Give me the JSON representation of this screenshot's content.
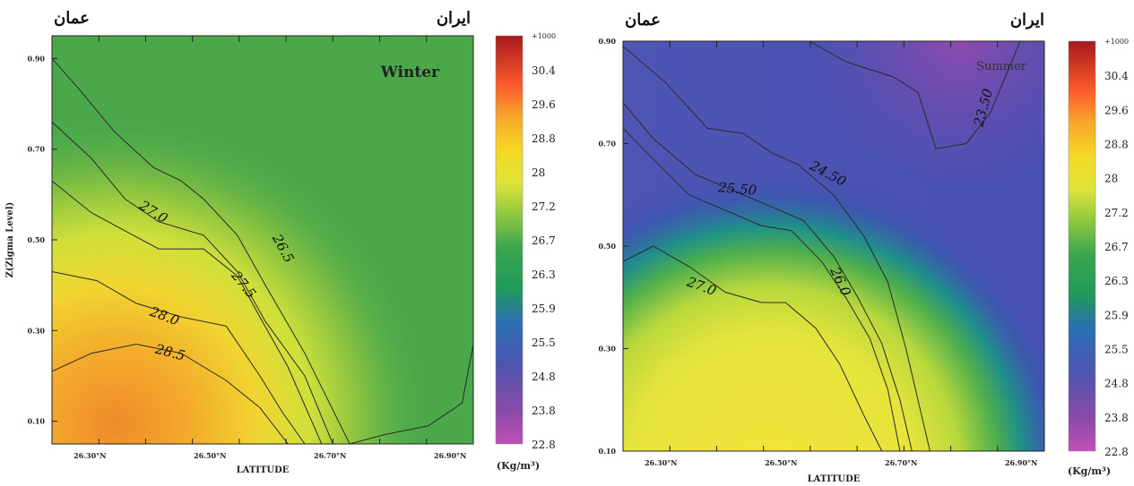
{
  "chart_data": [
    {
      "type": "heatmap",
      "title": "Winter",
      "region_left": "عمان",
      "region_right": "ایران",
      "xlabel": "LATITUDE",
      "ylabel": "Z(Zigma Level)",
      "xticks": [
        "26.30°N",
        "26.50°N",
        "26.70°N",
        "26.90°N"
      ],
      "yticks": [
        "0.10",
        "0.30",
        "0.50",
        "0.70",
        "0.90"
      ],
      "xlim": [
        26.25,
        27.0
      ],
      "ylim": [
        0.05,
        0.95
      ],
      "contours": [
        {
          "label": "28.5",
          "points": [
            [
              26.25,
              0.21
            ],
            [
              26.32,
              0.25
            ],
            [
              26.4,
              0.27
            ],
            [
              26.48,
              0.25
            ],
            [
              26.56,
              0.19
            ],
            [
              26.62,
              0.13
            ],
            [
              26.67,
              0.05
            ]
          ]
        },
        {
          "label": "28.0",
          "points": [
            [
              26.25,
              0.43
            ],
            [
              26.33,
              0.41
            ],
            [
              26.4,
              0.36
            ],
            [
              26.48,
              0.33
            ],
            [
              26.56,
              0.31
            ],
            [
              26.62,
              0.2
            ],
            [
              26.66,
              0.12
            ],
            [
              26.7,
              0.05
            ]
          ]
        },
        {
          "label": "27.5",
          "points": [
            [
              26.25,
              0.63
            ],
            [
              26.32,
              0.56
            ],
            [
              26.38,
              0.52
            ],
            [
              26.44,
              0.48
            ],
            [
              26.52,
              0.48
            ],
            [
              26.58,
              0.42
            ],
            [
              26.62,
              0.33
            ],
            [
              26.67,
              0.22
            ],
            [
              26.73,
              0.05
            ]
          ]
        },
        {
          "label": "27.0",
          "points": [
            [
              26.25,
              0.76
            ],
            [
              26.32,
              0.68
            ],
            [
              26.38,
              0.59
            ],
            [
              26.44,
              0.54
            ],
            [
              26.52,
              0.51
            ],
            [
              26.58,
              0.43
            ],
            [
              26.63,
              0.32
            ],
            [
              26.7,
              0.2
            ],
            [
              26.75,
              0.05
            ]
          ]
        },
        {
          "label": "26.5",
          "points": [
            [
              26.25,
              0.9
            ],
            [
              26.3,
              0.83
            ],
            [
              26.36,
              0.74
            ],
            [
              26.43,
              0.66
            ],
            [
              26.48,
              0.63
            ],
            [
              26.52,
              0.59
            ],
            [
              26.58,
              0.51
            ],
            [
              26.63,
              0.4
            ],
            [
              26.7,
              0.25
            ],
            [
              26.78,
              0.05
            ],
            [
              26.84,
              0.07
            ],
            [
              26.92,
              0.09
            ],
            [
              26.98,
              0.14
            ],
            [
              27.0,
              0.27
            ]
          ]
        }
      ],
      "labels": [
        {
          "text": "27.0",
          "x": 26.43,
          "y": 0.56,
          "angle": 32
        },
        {
          "text": "28.0",
          "x": 26.45,
          "y": 0.33,
          "angle": 20
        },
        {
          "text": "27.5",
          "x": 26.59,
          "y": 0.4,
          "angle": 52
        },
        {
          "text": "26.5",
          "x": 26.66,
          "y": 0.48,
          "angle": 62
        },
        {
          "text": "28.5",
          "x": 26.46,
          "y": 0.25,
          "angle": 15
        }
      ]
    },
    {
      "type": "heatmap",
      "title": "Summer",
      "region_left": "عمان",
      "region_right": "ایران",
      "xlabel": "LATITUDE",
      "ylabel": "",
      "xticks": [
        "26.30°N",
        "26.50°N",
        "26.70°N",
        "26.90°N"
      ],
      "yticks": [
        "0.10",
        "0.30",
        "0.50",
        "0.70",
        "0.90"
      ],
      "xlim": [
        26.25,
        26.95
      ],
      "ylim": [
        0.1,
        0.9
      ],
      "contours": [
        {
          "label": "27.0",
          "points": [
            [
              26.25,
              0.47
            ],
            [
              26.3,
              0.5
            ],
            [
              26.36,
              0.46
            ],
            [
              26.42,
              0.41
            ],
            [
              26.48,
              0.39
            ],
            [
              26.52,
              0.39
            ],
            [
              26.57,
              0.34
            ],
            [
              26.61,
              0.27
            ],
            [
              26.65,
              0.17
            ],
            [
              26.68,
              0.1
            ]
          ]
        },
        {
          "label": "26.0",
          "points": [
            [
              26.25,
              0.73
            ],
            [
              26.3,
              0.67
            ],
            [
              26.36,
              0.6
            ],
            [
              26.42,
              0.57
            ],
            [
              26.48,
              0.54
            ],
            [
              26.53,
              0.53
            ],
            [
              26.58,
              0.47
            ],
            [
              26.62,
              0.4
            ],
            [
              26.66,
              0.32
            ],
            [
              26.69,
              0.22
            ],
            [
              26.71,
              0.1
            ]
          ]
        },
        {
          "label": "25.50",
          "points": [
            [
              26.25,
              0.78
            ],
            [
              26.3,
              0.71
            ],
            [
              26.37,
              0.64
            ],
            [
              26.43,
              0.61
            ],
            [
              26.49,
              0.58
            ],
            [
              26.55,
              0.55
            ],
            [
              26.6,
              0.48
            ],
            [
              26.64,
              0.4
            ],
            [
              26.68,
              0.31
            ],
            [
              26.71,
              0.2
            ],
            [
              26.73,
              0.1
            ]
          ]
        },
        {
          "label": "24.50",
          "points": [
            [
              26.25,
              0.89
            ],
            [
              26.32,
              0.82
            ],
            [
              26.39,
              0.73
            ],
            [
              26.45,
              0.72
            ],
            [
              26.5,
              0.68
            ],
            [
              26.54,
              0.66
            ],
            [
              26.6,
              0.6
            ],
            [
              26.65,
              0.52
            ],
            [
              26.69,
              0.43
            ],
            [
              26.72,
              0.3
            ],
            [
              26.76,
              0.1
            ]
          ]
        },
        {
          "label": "23.50",
          "points": [
            [
              26.56,
              0.9
            ],
            [
              26.62,
              0.86
            ],
            [
              26.7,
              0.83
            ],
            [
              26.74,
              0.8
            ],
            [
              26.77,
              0.69
            ],
            [
              26.82,
              0.7
            ],
            [
              26.86,
              0.76
            ],
            [
              26.91,
              0.9
            ]
          ]
        }
      ],
      "labels": [
        {
          "text": "27.0",
          "x": 26.38,
          "y": 0.42,
          "angle": 20
        },
        {
          "text": "26.0",
          "x": 26.61,
          "y": 0.43,
          "angle": 65
        },
        {
          "text": "25.50",
          "x": 26.44,
          "y": 0.61,
          "angle": 5
        },
        {
          "text": "24.50",
          "x": 26.59,
          "y": 0.64,
          "angle": 28
        },
        {
          "text": "23.50",
          "x": 26.85,
          "y": 0.77,
          "angle": -75
        }
      ]
    }
  ],
  "colorbar": {
    "ticks": [
      "+1000",
      "30.4",
      "29.6",
      "28.8",
      "28",
      "27.2",
      "26.7",
      "26.3",
      "25.9",
      "25.5",
      "24.8",
      "23.8",
      "22.8"
    ],
    "unit": "(Kg/m³)",
    "colors": [
      "#b71c1c",
      "#e53935",
      "#fb6a2c",
      "#f7a72a",
      "#f5d824",
      "#e8e534",
      "#b8d83d",
      "#7fc040",
      "#3aa64f",
      "#1f8f8f",
      "#3c5ab8",
      "#5a4aa8",
      "#8a4aa8",
      "#c14fb8"
    ]
  }
}
